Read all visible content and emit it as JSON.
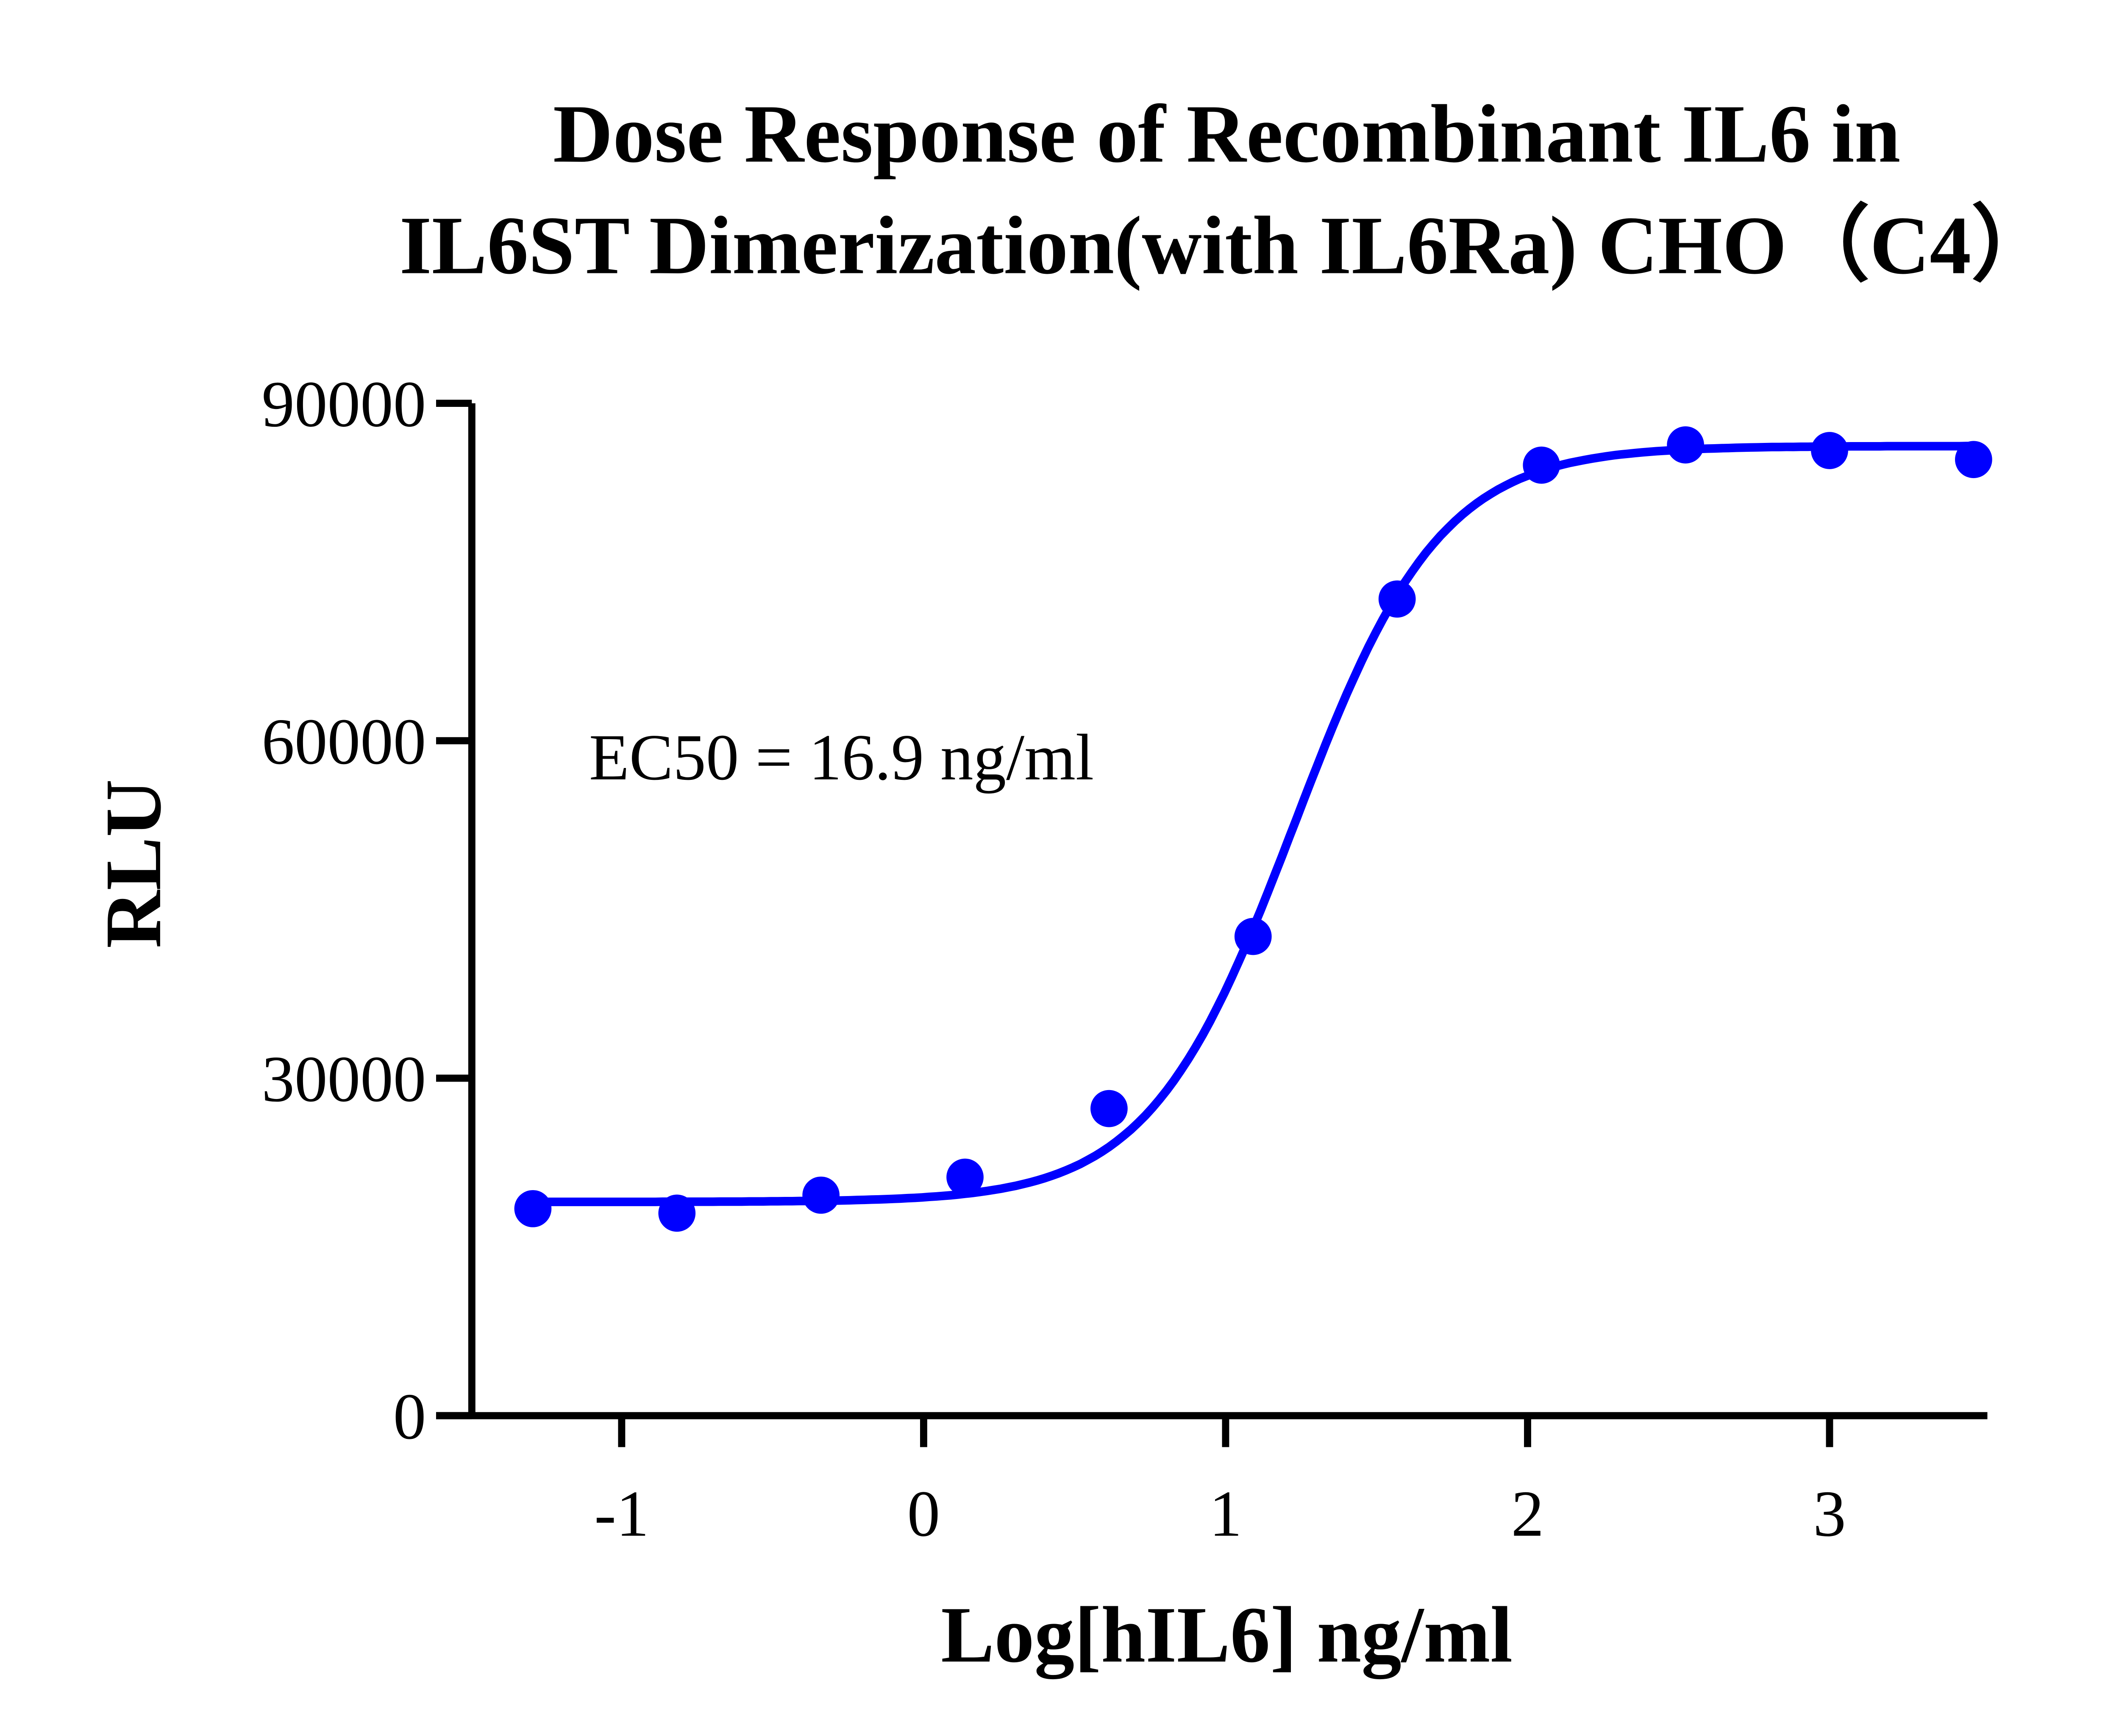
{
  "chart_data": {
    "type": "scatter",
    "title_lines": [
      "Dose Response of Recombinant IL6 in",
      "IL6ST Dimerization(with IL6Ra) CHO（C4）"
    ],
    "xlabel": "Log[hIL6] ng/ml",
    "ylabel": "RLU",
    "xlim": [
      -1.5,
      3.5
    ],
    "ylim": [
      0,
      90000
    ],
    "xticks": [
      -1,
      0,
      1,
      2,
      3
    ],
    "xtick_labels": [
      "-1",
      "0",
      "1",
      "2",
      "3"
    ],
    "yticks": [
      0,
      30000,
      60000,
      90000
    ],
    "ytick_labels": [
      "0",
      "30000",
      "60000",
      "90000"
    ],
    "grid": false,
    "annotation": "EC50 = 16.9 ng/ml",
    "color": "#0000ff",
    "points": {
      "x": [
        -1.294,
        -0.817,
        -0.34,
        0.137,
        0.614,
        1.091,
        1.568,
        2.046,
        2.523,
        3.0,
        3.477
      ],
      "y": [
        18400,
        18000,
        19600,
        21200,
        27300,
        42600,
        72600,
        84500,
        86300,
        85800,
        85000
      ]
    },
    "fit": {
      "model": "4PL",
      "bottom": 19000,
      "top": 86200,
      "logEC50": 1.228,
      "hill": 1.8
    }
  }
}
